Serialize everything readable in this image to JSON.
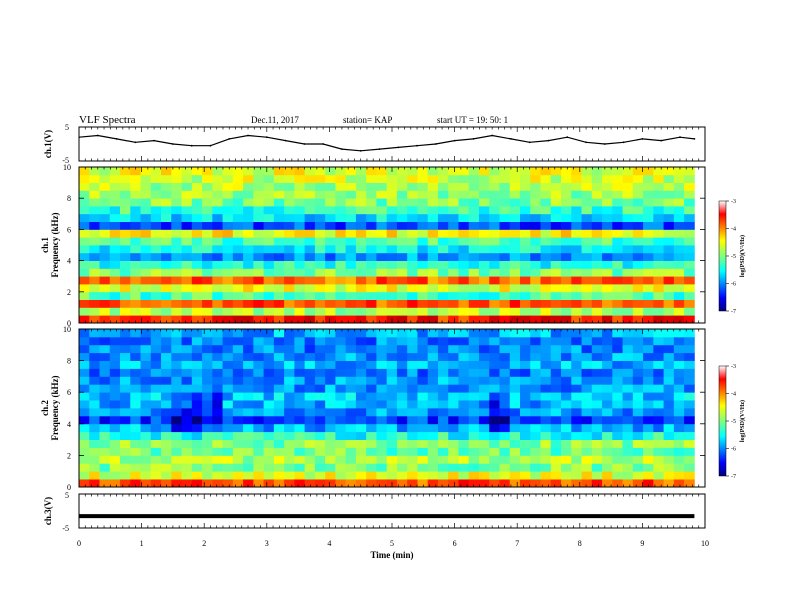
{
  "header": {
    "title": "VLF Spectra",
    "date": "Dec.11, 2017",
    "station": "station= KAP",
    "start": "start  UT =   19: 50: 1"
  },
  "chart_data": [
    {
      "type": "line",
      "id": "ch1-waveform",
      "ylabel": "ch.1(V)",
      "ylim": [
        -5,
        5
      ],
      "yticks": [
        "5",
        "-5"
      ],
      "xlim": [
        0,
        10
      ],
      "x_end": 9.83,
      "series": [
        {
          "color": "#000000",
          "x": [
            0,
            0.3,
            0.6,
            0.9,
            1.2,
            1.5,
            1.8,
            2.1,
            2.4,
            2.7,
            3.0,
            3.3,
            3.6,
            3.9,
            4.2,
            4.5,
            4.8,
            5.1,
            5.4,
            5.7,
            6.0,
            6.3,
            6.6,
            6.9,
            7.2,
            7.5,
            7.8,
            8.1,
            8.4,
            8.7,
            9.0,
            9.3,
            9.6,
            9.83
          ],
          "y": [
            2.0,
            2.5,
            1.5,
            0.5,
            1.0,
            0.0,
            -0.5,
            -0.5,
            1.5,
            2.5,
            2.0,
            1.0,
            0.0,
            0.0,
            -1.5,
            -2.0,
            -1.5,
            -1.0,
            -0.5,
            0.0,
            1.0,
            1.5,
            2.5,
            1.5,
            0.5,
            1.0,
            2.0,
            0.5,
            0.0,
            0.5,
            1.5,
            1.0,
            2.0,
            1.5
          ]
        }
      ]
    },
    {
      "type": "heatmap",
      "id": "ch1-spectrogram",
      "ylabel_line1": "ch.1",
      "ylabel_line2": "Frequency (kHz)",
      "ylim": [
        0,
        10
      ],
      "yticks": [
        "0",
        "2",
        "4",
        "6",
        "8",
        "10"
      ],
      "xlim": [
        0,
        10
      ],
      "x_end": 9.83,
      "color_scale": "jet",
      "colorbar": {
        "range": [
          -7,
          -3
        ],
        "ticks": [
          "-3",
          "-4",
          "-5",
          "-6",
          "-7"
        ],
        "label": "log(PSD)(V²/Hz)"
      },
      "freq_bands_khz": [
        0,
        0.5,
        1,
        1.5,
        2,
        2.5,
        3,
        3.5,
        4,
        4.5,
        5,
        5.5,
        6,
        6.5,
        7,
        7.5,
        8,
        8.5,
        9,
        9.5,
        10
      ],
      "level_profile": [
        -3.6,
        -4.8,
        -3.8,
        -5.2,
        -4.6,
        -3.9,
        -5.0,
        -5.4,
        -5.9,
        -5.5,
        -5.2,
        -4.5,
        -6.2,
        -5.6,
        -5.3,
        -5.0,
        -4.9,
        -4.8,
        -4.7,
        -4.6
      ],
      "time_segments": [
        {
          "range": [
            0,
            9.83
          ],
          "offset": 0.0
        }
      ]
    },
    {
      "type": "heatmap",
      "id": "ch2-spectrogram",
      "ylabel_line1": "ch.2",
      "ylabel_line2": "Frequency (kHz)",
      "ylim": [
        0,
        10
      ],
      "yticks": [
        "0",
        "2",
        "4",
        "6",
        "8",
        "10"
      ],
      "xlim": [
        0,
        10
      ],
      "x_end": 9.83,
      "color_scale": "jet",
      "colorbar": {
        "range": [
          -7,
          -3
        ],
        "ticks": [
          "-3",
          "-4",
          "-5",
          "-6",
          "-7"
        ],
        "label": "log(PSD)(V²/Hz)"
      },
      "freq_bands_khz": [
        0,
        0.5,
        1,
        1.5,
        2,
        2.5,
        3,
        3.5,
        4,
        4.5,
        5,
        5.5,
        6,
        6.5,
        7,
        7.5,
        8,
        8.5,
        9,
        9.5,
        10
      ],
      "level_profile": [
        -3.8,
        -4.6,
        -5.0,
        -4.8,
        -5.1,
        -5.0,
        -5.4,
        -5.8,
        -6.3,
        -5.9,
        -5.8,
        -5.7,
        -5.9,
        -5.9,
        -6.0,
        -5.8,
        -5.9,
        -6.0,
        -6.0,
        -5.8
      ],
      "time_segments": [
        {
          "range": [
            0,
            1.4
          ],
          "offset": 0.0
        },
        {
          "range": [
            1.4,
            2.3
          ],
          "offset": -0.5
        },
        {
          "range": [
            2.3,
            6.6
          ],
          "offset": 0.0
        },
        {
          "range": [
            6.6,
            6.8
          ],
          "offset": -0.6
        },
        {
          "range": [
            6.8,
            9.83
          ],
          "offset": 0.0
        }
      ]
    },
    {
      "type": "line",
      "id": "ch3-waveform",
      "ylabel": "ch.3(V)",
      "ylim": [
        -5,
        5
      ],
      "yticks": [
        "5",
        "-5"
      ],
      "xlim": [
        0,
        10
      ],
      "x_end": 9.83,
      "series": [
        {
          "color": "#000000",
          "x": [
            0,
            9.83
          ],
          "y": [
            -1.5,
            -1.5
          ]
        }
      ]
    }
  ],
  "xaxis": {
    "label": "Time (min)",
    "ticks": [
      "0",
      "1",
      "2",
      "3",
      "4",
      "5",
      "6",
      "7",
      "8",
      "9",
      "10"
    ]
  }
}
